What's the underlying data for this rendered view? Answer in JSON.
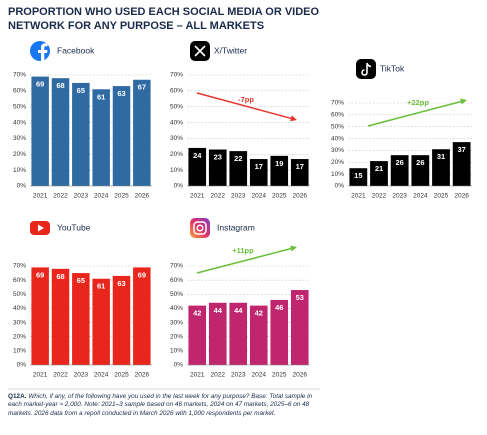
{
  "title": [
    "PROPORTION WHO USED EACH SOCIAL MEDIA OR VIDEO",
    "NETWORK FOR ANY PURPOSE – ALL MARKETS"
  ],
  "footnote_label": "Q12A.",
  "footnote": "Which, if any, of the following have you used in the last week for any purpose? Base: Total sample in each market-year ≈ 2,000. Note: 2021–3 sample based on 46 markets, 2024 on 47 markets, 2025–6 on 48 markets. 2026 data from a repoll conducted in March 2026 with 1,000 respondents per market.",
  "chart_data": [
    {
      "type": "bar",
      "title": "Facebook",
      "categories": [
        "2021",
        "2022",
        "2023",
        "2024",
        "2025",
        "2026"
      ],
      "values": [
        69,
        68,
        65,
        61,
        63,
        67
      ],
      "color": "#2f6aa3",
      "ylim": [
        0,
        70
      ],
      "yticks": [
        {
          "value": 0,
          "label": "0%"
        },
        {
          "value": 10,
          "label": "10%"
        },
        {
          "value": 20,
          "label": "20%"
        },
        {
          "value": 30,
          "label": "30%"
        },
        {
          "value": 40,
          "label": "40%"
        },
        {
          "value": 50,
          "label": "50%"
        },
        {
          "value": 60,
          "label": "60%"
        },
        {
          "value": 70,
          "label": "70%"
        }
      ],
      "grid": true
    },
    {
      "type": "bar",
      "title": "X/Twitter",
      "categories": [
        "2021",
        "2022",
        "2023",
        "2024",
        "2025",
        "2026"
      ],
      "values": [
        24,
        23,
        22,
        17,
        19,
        17
      ],
      "color": "#000000",
      "ylim": [
        0,
        70
      ],
      "yticks": [
        {
          "value": 0,
          "label": "0%"
        },
        {
          "value": 10,
          "label": "10%"
        },
        {
          "value": 20,
          "label": "20%"
        },
        {
          "value": 30,
          "label": "30%"
        },
        {
          "value": 40,
          "label": "40%"
        },
        {
          "value": 50,
          "label": "50%"
        },
        {
          "value": 60,
          "label": "60%"
        },
        {
          "value": 70,
          "label": "70%"
        }
      ],
      "grid": true,
      "annotation": {
        "text": "-7pp",
        "color": "#e5352b"
      }
    },
    {
      "type": "bar",
      "title": "TikTok",
      "categories": [
        "2021",
        "2022",
        "2023",
        "2024",
        "2025",
        "2026"
      ],
      "values": [
        15,
        21,
        26,
        26,
        31,
        37
      ],
      "color": "#000000",
      "ylim": [
        0,
        70
      ],
      "yticks": [
        {
          "value": 0,
          "label": "0%"
        },
        {
          "value": 10,
          "label": "10%"
        },
        {
          "value": 20,
          "label": "20%"
        },
        {
          "value": 30,
          "label": "30%"
        },
        {
          "value": 40,
          "label": "40%"
        },
        {
          "value": 50,
          "label": "50%"
        },
        {
          "value": 60,
          "label": "60%"
        },
        {
          "value": 70,
          "label": "70%"
        }
      ],
      "grid": true,
      "annotation": {
        "text": "+22pp",
        "color": "#6abf3a"
      }
    },
    {
      "type": "bar",
      "title": "YouTube",
      "categories": [
        "2021",
        "2022",
        "2023",
        "2024",
        "2025",
        "2026"
      ],
      "values": [
        69,
        68,
        65,
        61,
        63,
        69
      ],
      "color": "#e8261c",
      "ylim": [
        0,
        70
      ],
      "yticks": [
        {
          "value": 0,
          "label": "0%"
        },
        {
          "value": 10,
          "label": "10%"
        },
        {
          "value": 20,
          "label": "20%"
        },
        {
          "value": 30,
          "label": "30%"
        },
        {
          "value": 40,
          "label": "40%"
        },
        {
          "value": 50,
          "label": "50%"
        },
        {
          "value": 60,
          "label": "60%"
        },
        {
          "value": 70,
          "label": "70%"
        }
      ],
      "grid": true
    },
    {
      "type": "bar",
      "title": "Instagram",
      "categories": [
        "2021",
        "2022",
        "2023",
        "2024",
        "2025",
        "2026"
      ],
      "values": [
        42,
        44,
        44,
        42,
        46,
        53
      ],
      "color": "#c0266e",
      "ylim": [
        0,
        70
      ],
      "yticks": [
        {
          "value": 0,
          "label": "0%"
        },
        {
          "value": 10,
          "label": "10%"
        },
        {
          "value": 20,
          "label": "20%"
        },
        {
          "value": 30,
          "label": "30%"
        },
        {
          "value": 40,
          "label": "40%"
        },
        {
          "value": 50,
          "label": "50%"
        },
        {
          "value": 60,
          "label": "60%"
        },
        {
          "value": 70,
          "label": "70%"
        }
      ],
      "grid": true,
      "annotation": {
        "text": "+11pp",
        "color": "#6abf3a"
      }
    }
  ]
}
